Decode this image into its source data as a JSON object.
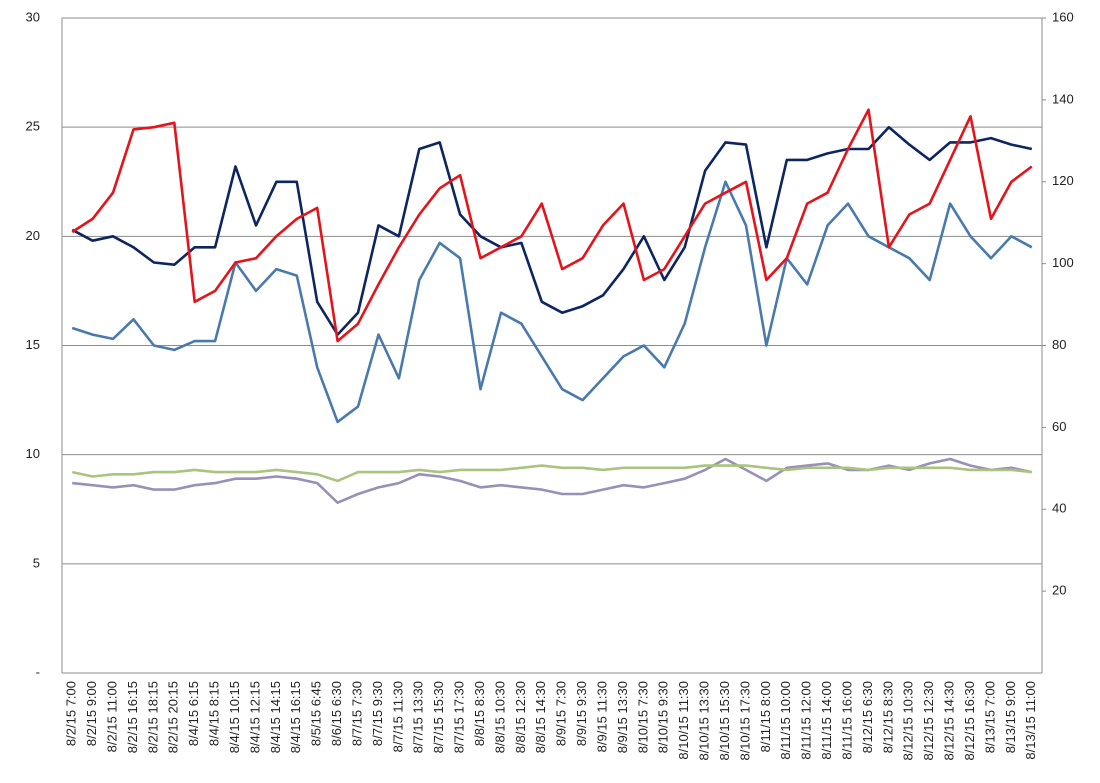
{
  "chart_data": {
    "type": "line",
    "categories": [
      "8/2/15 7:00",
      "8/2/15 9:00",
      "8/2/15 11:00",
      "8/2/15 16:15",
      "8/2/15 18:15",
      "8/2/15 20:15",
      "8/4/15 6:15",
      "8/4/15 8:15",
      "8/4/15 10:15",
      "8/4/15 12:15",
      "8/4/15 14:15",
      "8/4/15 16:15",
      "8/5/15 6:45",
      "8/6/15 6:30",
      "8/7/15 7:30",
      "8/7/15 9:30",
      "8/7/15 11:30",
      "8/7/15 13:30",
      "8/7/15 15:30",
      "8/7/15 17:30",
      "8/8/15 8:30",
      "8/8/15 10:30",
      "8/8/15 12:30",
      "8/8/15 14:30",
      "8/9/15 7:30",
      "8/9/15 9:30",
      "8/9/15 11:30",
      "8/9/15 13:30",
      "8/10/15 7:30",
      "8/10/15 9:30",
      "8/10/15 11:30",
      "8/10/15 13:30",
      "8/10/15 15:30",
      "8/10/15 17:30",
      "8/11/15 8:00",
      "8/11/15 10:00",
      "8/11/15 12:00",
      "8/11/15 14:00",
      "8/11/15 16:00",
      "8/12/15 6:30",
      "8/12/15 8:30",
      "8/12/15 10:30",
      "8/12/15 12:30",
      "8/12/15 14:30",
      "8/12/15 16:30",
      "8/13/15 7:00",
      "8/13/15 9:00",
      "8/13/15 11:00"
    ],
    "series": [
      {
        "color": "#e3141b",
        "values": [
          20.2,
          20.8,
          22,
          24.9,
          25,
          25.2,
          17,
          17.5,
          18.8,
          19,
          20,
          20.8,
          21.3,
          15.2,
          16,
          17.8,
          19.5,
          21,
          22.2,
          22.8,
          19,
          19.5,
          20,
          21.5,
          18.5,
          19,
          20.5,
          21.5,
          18,
          18.5,
          20,
          21.5,
          22,
          22.5,
          18,
          19,
          21.5,
          22,
          24,
          25.8,
          19.5,
          21,
          21.5,
          23.5,
          25.5,
          20.8,
          22.5,
          23.2
        ]
      },
      {
        "color": "#0d2560",
        "values": [
          20.3,
          19.8,
          20,
          19.5,
          18.8,
          18.7,
          19.5,
          19.5,
          23.2,
          20.5,
          22.5,
          22.5,
          17,
          15.5,
          16.5,
          20.5,
          20,
          24,
          24.3,
          21,
          20,
          19.5,
          19.7,
          17,
          16.5,
          16.8,
          17.3,
          18.5,
          20,
          18,
          19.5,
          23,
          24.3,
          24.2,
          19.5,
          23.5,
          23.5,
          23.8,
          24,
          24,
          25,
          24.2,
          23.5,
          24.3,
          24.3,
          24.5,
          24.2,
          24
        ]
      },
      {
        "color": "#4a7aad",
        "values": [
          15.8,
          15.5,
          15.3,
          16.2,
          15,
          14.8,
          15.2,
          15.2,
          18.8,
          17.5,
          18.5,
          18.2,
          14,
          11.5,
          12.2,
          15.5,
          13.5,
          18,
          19.7,
          19,
          13,
          16.5,
          16,
          14.5,
          13,
          12.5,
          13.5,
          14.5,
          15,
          14,
          16,
          19.5,
          22.5,
          20.5,
          15,
          19,
          17.8,
          20.5,
          21.5,
          20,
          19.5,
          19,
          18,
          21.5,
          20,
          19,
          20,
          19.5
        ]
      },
      {
        "color": "#a9c47f",
        "values": [
          9.2,
          9.0,
          9.1,
          9.1,
          9.2,
          9.2,
          9.3,
          9.2,
          9.2,
          9.2,
          9.3,
          9.2,
          9.1,
          8.8,
          9.2,
          9.2,
          9.2,
          9.3,
          9.2,
          9.3,
          9.3,
          9.3,
          9.4,
          9.5,
          9.4,
          9.4,
          9.3,
          9.4,
          9.4,
          9.4,
          9.4,
          9.5,
          9.5,
          9.5,
          9.4,
          9.3,
          9.4,
          9.4,
          9.4,
          9.3,
          9.4,
          9.4,
          9.4,
          9.4,
          9.3,
          9.3,
          9.3,
          9.2
        ]
      },
      {
        "color": "#9990b8",
        "values": [
          8.7,
          8.6,
          8.5,
          8.6,
          8.4,
          8.4,
          8.6,
          8.7,
          8.9,
          8.9,
          9.0,
          8.9,
          8.7,
          7.8,
          8.2,
          8.5,
          8.7,
          9.1,
          9.0,
          8.8,
          8.5,
          8.6,
          8.5,
          8.4,
          8.2,
          8.2,
          8.4,
          8.6,
          8.5,
          8.7,
          8.9,
          9.3,
          9.8,
          9.3,
          8.8,
          9.4,
          9.5,
          9.6,
          9.3,
          9.3,
          9.5,
          9.3,
          9.6,
          9.8,
          9.5,
          9.3,
          9.4,
          9.2
        ]
      }
    ],
    "ylim": [
      0,
      30
    ],
    "yticks": [
      {
        "value": 0,
        "label": "-"
      },
      5,
      10,
      15,
      20,
      25,
      30
    ],
    "y2lim": [
      0,
      160
    ],
    "y2ticks": [
      20,
      40,
      60,
      80,
      100,
      120,
      140,
      160
    ],
    "grid": true
  }
}
